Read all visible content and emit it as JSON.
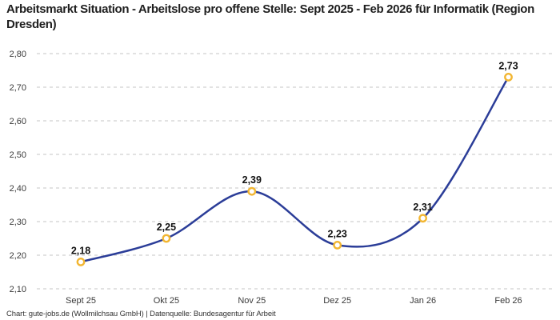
{
  "title": "Arbeitsmarkt Situation - Arbeitslose pro offene Stelle: Sept 2025 - Feb 2026 für Informatik (Region Dresden)",
  "footer": "Chart: gute-jobs.de (Wollmilchsau GmbH) | Datenquelle: Bundesagentur für Arbeit",
  "chart_data": {
    "type": "line",
    "title": "Arbeitsmarkt Situation - Arbeitslose pro offene Stelle: Sept 2025 - Feb 2026 für Informatik (Region Dresden)",
    "categories": [
      "Sept 25",
      "Okt 25",
      "Nov 25",
      "Dez 25",
      "Jan 26",
      "Feb 26"
    ],
    "values": [
      2.18,
      2.25,
      2.39,
      2.23,
      2.31,
      2.73
    ],
    "value_labels": [
      "2,18",
      "2,25",
      "2,39",
      "2,23",
      "2,31",
      "2,73"
    ],
    "xlabel": "",
    "ylabel": "",
    "ylim": [
      2.1,
      2.8
    ],
    "y_tick_step": 0.1,
    "y_tick_labels": [
      "2,10",
      "2,20",
      "2,30",
      "2,40",
      "2,50",
      "2,60",
      "2,70",
      "2,80"
    ],
    "grid": "horizontal-dashed",
    "legend": "none",
    "smooth": true,
    "colors": {
      "line": "#2b3d98",
      "marker_ring": "#f2b632",
      "marker_fill": "#ffffff",
      "gridline": "#c4c4c4",
      "axis_text": "#3a3a3a",
      "point_label_text": "#111111"
    }
  }
}
